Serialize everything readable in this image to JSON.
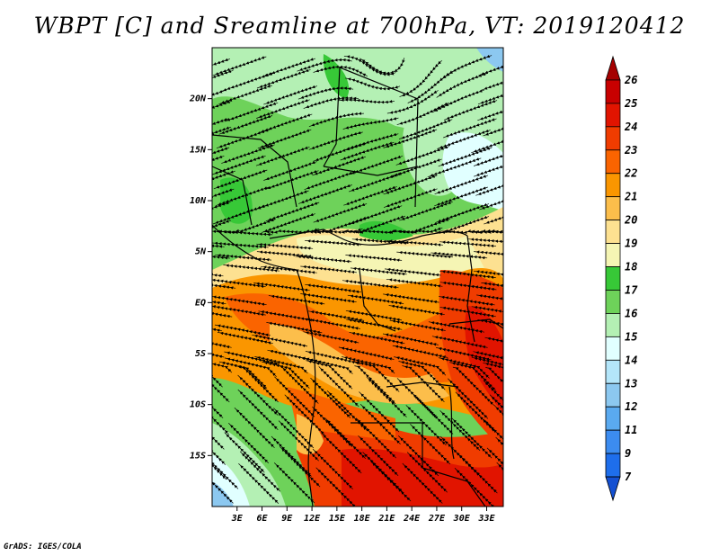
{
  "title": "WBPT [C] and Sreamline at 700hPa, VT: 2019120412",
  "footer": "GrADS: IGES/COLA",
  "map": {
    "lon_range": [
      0,
      35
    ],
    "lat_range": [
      -20,
      25
    ],
    "lat_ticks": [
      {
        "value": 20,
        "label": "20N"
      },
      {
        "value": 15,
        "label": "15N"
      },
      {
        "value": 10,
        "label": "10N"
      },
      {
        "value": 5,
        "label": "5N"
      },
      {
        "value": 0,
        "label": "EQ"
      },
      {
        "value": -5,
        "label": "5S"
      },
      {
        "value": -10,
        "label": "10S"
      },
      {
        "value": -15,
        "label": "15S"
      }
    ],
    "lon_ticks": [
      {
        "value": 3,
        "label": "3E"
      },
      {
        "value": 6,
        "label": "6E"
      },
      {
        "value": 9,
        "label": "9E"
      },
      {
        "value": 12,
        "label": "12E"
      },
      {
        "value": 15,
        "label": "15E"
      },
      {
        "value": 18,
        "label": "18E"
      },
      {
        "value": 21,
        "label": "21E"
      },
      {
        "value": 24,
        "label": "24E"
      },
      {
        "value": 27,
        "label": "27E"
      },
      {
        "value": 30,
        "label": "30E"
      },
      {
        "value": 33,
        "label": "33E"
      }
    ]
  },
  "colorbar": {
    "levels": [
      {
        "label": "26",
        "color": "#a50000"
      },
      {
        "label": "25",
        "color": "#c80000"
      },
      {
        "label": "24",
        "color": "#e11400"
      },
      {
        "label": "23",
        "color": "#f03c00"
      },
      {
        "label": "22",
        "color": "#fa6400"
      },
      {
        "label": "21",
        "color": "#fa9600"
      },
      {
        "label": "20",
        "color": "#fcbe4b"
      },
      {
        "label": "19",
        "color": "#fde191"
      },
      {
        "label": "18",
        "color": "#f5f5b4"
      },
      {
        "label": "17",
        "color": "#37c837"
      },
      {
        "label": "16",
        "color": "#6ed25a"
      },
      {
        "label": "15",
        "color": "#b4f0b4"
      },
      {
        "label": "14",
        "color": "#e1ffff"
      },
      {
        "label": "13",
        "color": "#b4e6fa"
      },
      {
        "label": "12",
        "color": "#8cc8f0"
      },
      {
        "label": "11",
        "color": "#5aaaf0"
      },
      {
        "label": "9",
        "color": "#3c8cf0"
      },
      {
        "label": "7",
        "color": "#1e6eeb"
      },
      {
        "label": "",
        "color": "#1450d2"
      }
    ]
  }
}
